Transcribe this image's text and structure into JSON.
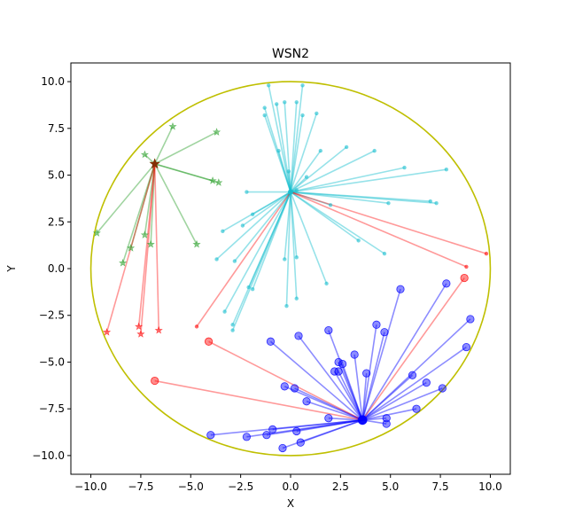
{
  "chart_data": {
    "type": "scatter",
    "title": "WSN2",
    "xlabel": "X",
    "ylabel": "Y",
    "xlim": [
      -11,
      11
    ],
    "ylim": [
      -11,
      11
    ],
    "x_ticks": [
      -10.0,
      -7.5,
      -5.0,
      -2.5,
      0.0,
      2.5,
      5.0,
      7.5,
      10.0
    ],
    "y_ticks": [
      -10.0,
      -7.5,
      -5.0,
      -2.5,
      0.0,
      2.5,
      5.0,
      7.5,
      10.0
    ],
    "x_tick_labels": [
      "−10.0",
      "−7.5",
      "−5.0",
      "−2.5",
      "0.0",
      "2.5",
      "5.0",
      "7.5",
      "10.0"
    ],
    "y_tick_labels": [
      "−10.0",
      "−7.5",
      "−5.0",
      "−2.5",
      "0.0",
      "2.5",
      "5.0",
      "7.5",
      "10.0"
    ],
    "grid": false,
    "boundary": {
      "shape": "circle",
      "center": [
        0,
        0
      ],
      "radius": 10,
      "color": "#bfbf00"
    },
    "clusters": [
      {
        "head": [
          -6.8,
          5.6
        ],
        "color": "#2ca02c",
        "marker": "star",
        "members": [
          [
            -5.9,
            7.6
          ],
          [
            -3.7,
            7.3
          ],
          [
            -7.3,
            6.1
          ],
          [
            -3.9,
            4.7
          ],
          [
            -3.6,
            4.6
          ],
          [
            -9.7,
            1.9
          ],
          [
            -7.3,
            1.8
          ],
          [
            -8.0,
            1.1
          ],
          [
            -7.0,
            1.3
          ],
          [
            -8.4,
            0.3
          ],
          [
            -4.7,
            1.3
          ]
        ]
      },
      {
        "head": [
          0.0,
          4.1
        ],
        "color": "#17becf",
        "marker": "dot",
        "members": [
          [
            -1.1,
            9.8
          ],
          [
            0.6,
            9.8
          ],
          [
            -0.7,
            8.8
          ],
          [
            -0.3,
            8.9
          ],
          [
            0.3,
            8.9
          ],
          [
            1.3,
            8.3
          ],
          [
            -1.3,
            8.6
          ],
          [
            -1.3,
            8.2
          ],
          [
            0.6,
            8.2
          ],
          [
            -0.6,
            6.3
          ],
          [
            1.5,
            6.3
          ],
          [
            2.8,
            6.5
          ],
          [
            4.2,
            6.3
          ],
          [
            5.7,
            5.4
          ],
          [
            7.8,
            5.3
          ],
          [
            -0.1,
            5.2
          ],
          [
            0.8,
            4.9
          ],
          [
            -2.2,
            4.1
          ],
          [
            -1.9,
            2.9
          ],
          [
            -2.4,
            2.3
          ],
          [
            -3.4,
            2.0
          ],
          [
            -3.7,
            0.5
          ],
          [
            -2.8,
            0.4
          ],
          [
            -0.3,
            0.5
          ],
          [
            0.3,
            0.6
          ],
          [
            -2.1,
            -1.0
          ],
          [
            -1.9,
            -1.1
          ],
          [
            -3.3,
            -2.3
          ],
          [
            -2.9,
            -3.0
          ],
          [
            -2.9,
            -3.3
          ],
          [
            -0.2,
            -2.0
          ],
          [
            0.3,
            -1.6
          ],
          [
            1.8,
            -0.8
          ],
          [
            3.4,
            1.5
          ],
          [
            4.7,
            0.8
          ],
          [
            2.0,
            3.4
          ],
          [
            4.9,
            3.5
          ],
          [
            7.0,
            3.6
          ],
          [
            7.3,
            3.5
          ],
          [
            0.3,
            4.2
          ]
        ]
      },
      {
        "head": [
          3.6,
          -8.1
        ],
        "color": "#0000ff",
        "marker": "circle",
        "members": [
          [
            5.5,
            -1.1
          ],
          [
            7.8,
            -0.8
          ],
          [
            9.0,
            -2.7
          ],
          [
            8.8,
            -4.2
          ],
          [
            4.3,
            -3.0
          ],
          [
            4.7,
            -3.4
          ],
          [
            1.9,
            -3.3
          ],
          [
            -1.0,
            -3.9
          ],
          [
            0.4,
            -3.6
          ],
          [
            3.2,
            -4.6
          ],
          [
            2.4,
            -5.0
          ],
          [
            2.6,
            -5.1
          ],
          [
            2.2,
            -5.5
          ],
          [
            2.4,
            -5.5
          ],
          [
            3.8,
            -5.6
          ],
          [
            6.1,
            -5.7
          ],
          [
            6.8,
            -6.1
          ],
          [
            7.6,
            -6.4
          ],
          [
            -0.3,
            -6.3
          ],
          [
            0.2,
            -6.4
          ],
          [
            0.8,
            -7.1
          ],
          [
            1.9,
            -8.0
          ],
          [
            4.8,
            -8.0
          ],
          [
            4.8,
            -8.3
          ],
          [
            6.3,
            -7.5
          ],
          [
            -0.9,
            -8.6
          ],
          [
            -1.2,
            -8.9
          ],
          [
            -2.2,
            -9.0
          ],
          [
            0.3,
            -8.7
          ],
          [
            -4.0,
            -8.9
          ],
          [
            0.5,
            -9.3
          ],
          [
            -0.4,
            -9.6
          ]
        ]
      }
    ],
    "head_links": [
      [
        -6.8,
        5.6
      ],
      [
        0.0,
        4.1
      ],
      [
        3.6,
        -8.1
      ]
    ],
    "red_nodes": [
      {
        "point": [
          -9.2,
          -3.4
        ],
        "to": [
          -6.8,
          5.6
        ],
        "marker": "star"
      },
      {
        "point": [
          -7.6,
          -3.1
        ],
        "to": [
          -6.8,
          5.6
        ],
        "marker": "star"
      },
      {
        "point": [
          -7.5,
          -3.5
        ],
        "to": [
          -6.8,
          5.6
        ],
        "marker": "star"
      },
      {
        "point": [
          -6.6,
          -3.3
        ],
        "to": [
          -6.8,
          5.6
        ],
        "marker": "star"
      },
      {
        "point": [
          -4.7,
          -3.1
        ],
        "to": [
          0.0,
          4.1
        ],
        "marker": "dot"
      },
      {
        "point": [
          9.8,
          0.8
        ],
        "to": [
          0.0,
          4.1
        ],
        "marker": "dot"
      },
      {
        "point": [
          8.8,
          0.1
        ],
        "to": [
          0.0,
          4.1
        ],
        "marker": "dot"
      },
      {
        "point": [
          8.7,
          -0.5
        ],
        "to": [
          3.6,
          -8.1
        ],
        "marker": "circle"
      },
      {
        "point": [
          -4.1,
          -3.9
        ],
        "to": [
          3.6,
          -8.1
        ],
        "marker": "circle"
      },
      {
        "point": [
          -6.8,
          -6.0
        ],
        "to": [
          3.6,
          -8.1
        ],
        "marker": "circle"
      }
    ],
    "red_color": "#ff0000"
  }
}
